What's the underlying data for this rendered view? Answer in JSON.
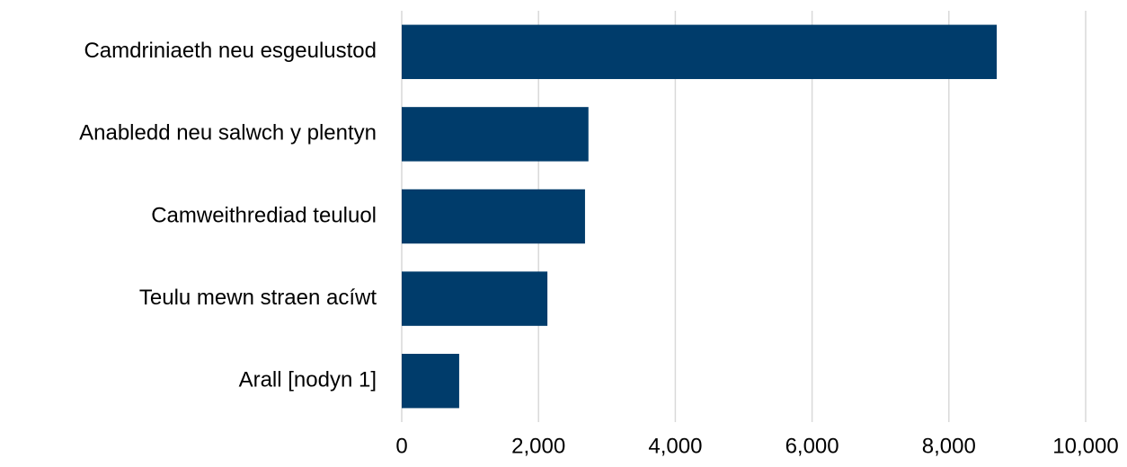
{
  "chart_data": {
    "type": "bar",
    "orientation": "horizontal",
    "categories": [
      "Camdriniaeth neu esgeulustod",
      "Anabledd neu salwch y plentyn",
      "Camweithrediad teuluol",
      "Teulu mewn straen acíwt",
      "Arall [nodyn 1]"
    ],
    "values": [
      8700,
      2730,
      2680,
      2130,
      840
    ],
    "color": "#003c6b",
    "xlim": [
      0,
      10000
    ],
    "xticks": [
      0,
      {
        "value": 2000,
        "label": "2,000"
      },
      {
        "value": 4000,
        "label": "4,000"
      },
      {
        "value": 6000,
        "label": "6,000"
      },
      {
        "value": 8000,
        "label": "8,000"
      },
      {
        "value": 10000,
        "label": "10,000"
      }
    ],
    "grid": true
  }
}
